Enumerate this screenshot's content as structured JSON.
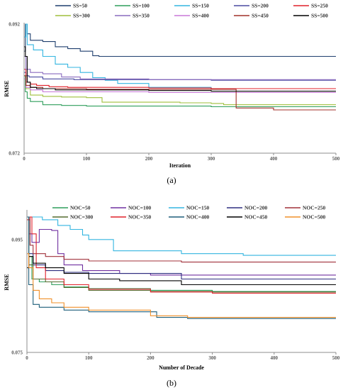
{
  "chart_data": [
    {
      "type": "line",
      "panel_label": "(a)",
      "xlabel": "Iteration",
      "ylabel": "RMSE",
      "xlim": [
        0,
        500
      ],
      "ylim": [
        0.072,
        0.092
      ],
      "xticks": [
        0,
        100,
        200,
        300,
        400,
        500
      ],
      "yticks": [
        0.072,
        0.092
      ],
      "ytick_labels": [
        "0.072",
        "0.092"
      ],
      "legend_position": "top",
      "series": [
        {
          "name": "SS=50",
          "color": "#1f3f6e",
          "points": [
            [
              0,
              0.0878
            ],
            [
              2,
              0.092
            ],
            [
              5,
              0.0905
            ],
            [
              10,
              0.0895
            ],
            [
              30,
              0.0893
            ],
            [
              50,
              0.0885
            ],
            [
              70,
              0.0882
            ],
            [
              90,
              0.0878
            ],
            [
              110,
              0.0871
            ],
            [
              120,
              0.087
            ],
            [
              200,
              0.087
            ],
            [
              300,
              0.087
            ],
            [
              500,
              0.087
            ]
          ]
        },
        {
          "name": "SS=100",
          "color": "#2e9e5b",
          "points": [
            [
              0,
              0.084
            ],
            [
              2,
              0.0815
            ],
            [
              5,
              0.0805
            ],
            [
              10,
              0.08
            ],
            [
              30,
              0.0795
            ],
            [
              60,
              0.0794
            ],
            [
              100,
              0.0793
            ],
            [
              200,
              0.0793
            ],
            [
              300,
              0.0792
            ],
            [
              500,
              0.0792
            ]
          ]
        },
        {
          "name": "SS=150",
          "color": "#33b5e0",
          "points": [
            [
              0,
              0.09
            ],
            [
              3,
              0.092
            ],
            [
              5,
              0.0888
            ],
            [
              15,
              0.088
            ],
            [
              30,
              0.087
            ],
            [
              50,
              0.0858
            ],
            [
              70,
              0.0853
            ],
            [
              90,
              0.0845
            ],
            [
              110,
              0.0837
            ],
            [
              130,
              0.0833
            ],
            [
              150,
              0.0828
            ],
            [
              200,
              0.0822
            ],
            [
              300,
              0.082
            ],
            [
              500,
              0.082
            ]
          ]
        },
        {
          "name": "SS=200",
          "color": "#4a4aa0",
          "points": [
            [
              0,
              0.0845
            ],
            [
              3,
              0.084
            ],
            [
              8,
              0.0838
            ],
            [
              30,
              0.0835
            ],
            [
              80,
              0.0834
            ],
            [
              150,
              0.0834
            ],
            [
              300,
              0.0833
            ],
            [
              500,
              0.0833
            ]
          ]
        },
        {
          "name": "SS=250",
          "color": "#e0202a",
          "points": [
            [
              0,
              0.085
            ],
            [
              3,
              0.083
            ],
            [
              10,
              0.0827
            ],
            [
              20,
              0.0825
            ],
            [
              40,
              0.0823
            ],
            [
              70,
              0.0822
            ],
            [
              100,
              0.0822
            ],
            [
              200,
              0.0821
            ],
            [
              300,
              0.082
            ],
            [
              500,
              0.082
            ]
          ]
        },
        {
          "name": "SS=300",
          "color": "#9fbf3b",
          "points": [
            [
              0,
              0.084
            ],
            [
              3,
              0.082
            ],
            [
              10,
              0.081
            ],
            [
              30,
              0.0808
            ],
            [
              60,
              0.0807
            ],
            [
              100,
              0.0806
            ],
            [
              125,
              0.0799
            ],
            [
              170,
              0.0799
            ],
            [
              250,
              0.0798
            ],
            [
              300,
              0.0797
            ],
            [
              320,
              0.0795
            ],
            [
              400,
              0.0795
            ],
            [
              500,
              0.0795
            ]
          ]
        },
        {
          "name": "SS=350",
          "color": "#8a6bbf",
          "points": [
            [
              0,
              0.087
            ],
            [
              3,
              0.085
            ],
            [
              10,
              0.0845
            ],
            [
              30,
              0.0843
            ],
            [
              60,
              0.0838
            ],
            [
              90,
              0.0835
            ],
            [
              200,
              0.0834
            ],
            [
              300,
              0.0834
            ],
            [
              500,
              0.0834
            ]
          ]
        },
        {
          "name": "SS=400",
          "color": "#c878d8",
          "points": [
            [
              0,
              0.0835
            ],
            [
              3,
              0.0822
            ],
            [
              10,
              0.0818
            ],
            [
              30,
              0.0815
            ],
            [
              60,
              0.0815
            ],
            [
              200,
              0.0814
            ],
            [
              300,
              0.0814
            ],
            [
              500,
              0.0814
            ]
          ]
        },
        {
          "name": "SS=450",
          "color": "#a0302a",
          "points": [
            [
              0,
              0.084
            ],
            [
              3,
              0.0825
            ],
            [
              10,
              0.0822
            ],
            [
              30,
              0.082
            ],
            [
              100,
              0.0819
            ],
            [
              200,
              0.0819
            ],
            [
              330,
              0.0819
            ],
            [
              340,
              0.079
            ],
            [
              400,
              0.0787
            ],
            [
              500,
              0.0787
            ]
          ]
        },
        {
          "name": "SS=500",
          "color": "#000000",
          "points": [
            [
              0,
              0.0885
            ],
            [
              2,
              0.087
            ],
            [
              5,
              0.083
            ],
            [
              10,
              0.0822
            ],
            [
              20,
              0.082
            ],
            [
              50,
              0.0818
            ],
            [
              100,
              0.0818
            ],
            [
              200,
              0.0817
            ],
            [
              300,
              0.0816
            ],
            [
              500,
              0.0816
            ]
          ]
        }
      ]
    },
    {
      "type": "line",
      "panel_label": "(b)",
      "xlabel": "Number of Decade",
      "ylabel": "RMSE",
      "xlim": [
        0,
        500
      ],
      "ylim": [
        0.075,
        0.1
      ],
      "xticks": [
        0,
        100,
        200,
        300,
        400,
        500
      ],
      "yticks": [
        0.075,
        0.095
      ],
      "ytick_labels": [
        "0.075",
        "0.095"
      ],
      "legend_position": "top",
      "series": [
        {
          "name": "NOC=50",
          "color": "#2e9e5b",
          "points": [
            [
              0,
              0.099
            ],
            [
              3,
              0.092
            ],
            [
              8,
              0.088
            ],
            [
              20,
              0.0875
            ],
            [
              40,
              0.087
            ],
            [
              60,
              0.0866
            ],
            [
              100,
              0.0863
            ],
            [
              200,
              0.086
            ],
            [
              300,
              0.0858
            ],
            [
              500,
              0.0858
            ]
          ]
        },
        {
          "name": "NOC=100",
          "color": "#7030a0",
          "points": [
            [
              0,
              0.099
            ],
            [
              3,
              0.096
            ],
            [
              8,
              0.0945
            ],
            [
              20,
              0.0968
            ],
            [
              40,
              0.0966
            ],
            [
              50,
              0.0925
            ],
            [
              60,
              0.0905
            ],
            [
              90,
              0.0895
            ],
            [
              150,
              0.089
            ],
            [
              200,
              0.0887
            ],
            [
              500,
              0.0887
            ]
          ]
        },
        {
          "name": "NOC=150",
          "color": "#33b5e0",
          "points": [
            [
              0,
              0.099
            ],
            [
              20,
              0.099
            ],
            [
              25,
              0.0985
            ],
            [
              50,
              0.0975
            ],
            [
              70,
              0.0968
            ],
            [
              90,
              0.0958
            ],
            [
              100,
              0.095
            ],
            [
              140,
              0.093
            ],
            [
              250,
              0.0925
            ],
            [
              350,
              0.0922
            ],
            [
              500,
              0.0922
            ]
          ]
        },
        {
          "name": "NOC=200",
          "color": "#2e2e80",
          "points": [
            [
              0,
              0.099
            ],
            [
              3,
              0.0925
            ],
            [
              10,
              0.0905
            ],
            [
              30,
              0.0895
            ],
            [
              60,
              0.0892
            ],
            [
              100,
              0.089
            ],
            [
              250,
              0.088
            ],
            [
              300,
              0.088
            ],
            [
              500,
              0.088
            ]
          ]
        },
        {
          "name": "NOC=250",
          "color": "#a0303a",
          "points": [
            [
              0,
              0.0985
            ],
            [
              5,
              0.094
            ],
            [
              10,
              0.0925
            ],
            [
              30,
              0.092
            ],
            [
              60,
              0.0915
            ],
            [
              100,
              0.0912
            ],
            [
              250,
              0.091
            ],
            [
              500,
              0.091
            ]
          ]
        },
        {
          "name": "NOC=300",
          "color": "#556b2f",
          "points": [
            [
              0,
              0.099
            ],
            [
              3,
              0.0905
            ],
            [
              10,
              0.088
            ],
            [
              30,
              0.0875
            ],
            [
              60,
              0.0865
            ],
            [
              100,
              0.086
            ],
            [
              200,
              0.0858
            ],
            [
              300,
              0.0857
            ],
            [
              500,
              0.0857
            ]
          ]
        },
        {
          "name": "NOC=350",
          "color": "#e0202a",
          "points": [
            [
              0,
              0.0985
            ],
            [
              5,
              0.099
            ],
            [
              8,
              0.096
            ],
            [
              15,
              0.09
            ],
            [
              30,
              0.088
            ],
            [
              60,
              0.087
            ],
            [
              100,
              0.0862
            ],
            [
              200,
              0.0857
            ],
            [
              300,
              0.0855
            ],
            [
              500,
              0.0855
            ]
          ]
        },
        {
          "name": "NOC=400",
          "color": "#1f5f7a",
          "points": [
            [
              0,
              0.099
            ],
            [
              3,
              0.087
            ],
            [
              10,
              0.0835
            ],
            [
              20,
              0.083
            ],
            [
              60,
              0.0825
            ],
            [
              100,
              0.0822
            ],
            [
              200,
              0.0822
            ],
            [
              210,
              0.0812
            ],
            [
              260,
              0.081
            ],
            [
              500,
              0.081
            ]
          ]
        },
        {
          "name": "NOC=450",
          "color": "#000000",
          "points": [
            [
              0,
              0.09
            ],
            [
              3,
              0.092
            ],
            [
              10,
              0.0908
            ],
            [
              30,
              0.09
            ],
            [
              60,
              0.089
            ],
            [
              100,
              0.088
            ],
            [
              150,
              0.0877
            ],
            [
              250,
              0.087
            ],
            [
              500,
              0.087
            ]
          ]
        },
        {
          "name": "NOC=500",
          "color": "#f0902a",
          "points": [
            [
              0,
              0.0925
            ],
            [
              3,
              0.09
            ],
            [
              10,
              0.086
            ],
            [
              20,
              0.0845
            ],
            [
              40,
              0.0838
            ],
            [
              60,
              0.083
            ],
            [
              100,
              0.0825
            ],
            [
              200,
              0.0815
            ],
            [
              260,
              0.0812
            ],
            [
              500,
              0.0812
            ]
          ]
        }
      ]
    }
  ]
}
